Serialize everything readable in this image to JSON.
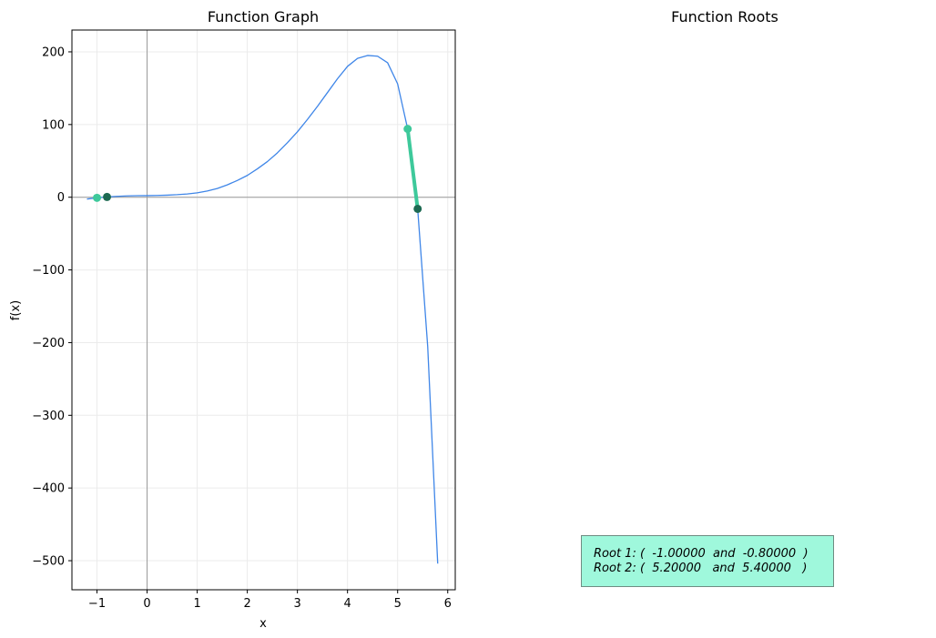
{
  "chart_data": [
    {
      "type": "line",
      "title": "Function Graph",
      "xlabel": "x",
      "ylabel": "f(x)",
      "xlim": [
        -1.5,
        6.15
      ],
      "ylim": [
        -540,
        230
      ],
      "grid": true,
      "xticks": [
        -1,
        0,
        1,
        2,
        3,
        4,
        5,
        6
      ],
      "yticks": [
        200,
        100,
        0,
        -100,
        -200,
        -300,
        -400,
        -500
      ],
      "xtick_labels": [
        "−1",
        "0",
        "1",
        "2",
        "3",
        "4",
        "5",
        "6"
      ],
      "ytick_labels": [
        "200",
        "100",
        "0",
        "−100",
        "−200",
        "−300",
        "−400",
        "−500"
      ],
      "series": [
        {
          "color": "#3f86e8",
          "x": [
            -1.2,
            -1.0,
            -0.8,
            -0.6,
            -0.4,
            -0.2,
            0.0,
            0.2,
            0.4,
            0.6,
            0.8,
            1.0,
            1.2,
            1.4,
            1.6,
            1.8,
            2.0,
            2.2,
            2.4,
            2.6,
            2.8,
            3.0,
            3.2,
            3.4,
            3.6,
            3.8,
            4.0,
            4.2,
            4.4,
            4.6,
            4.8,
            5.0,
            5.2,
            5.4,
            5.6,
            5.8
          ],
          "y": [
            -2.5,
            -0.8,
            0.4,
            1.2,
            1.8,
            2.1,
            2.2,
            2.4,
            2.8,
            3.5,
            4.5,
            6,
            8.5,
            12,
            17,
            23,
            30,
            39,
            49,
            61,
            75,
            90,
            107,
            125,
            144,
            163,
            180,
            191,
            195,
            194,
            185,
            156,
            94,
            -16,
            -205,
            -504
          ]
        }
      ],
      "highlight_segments": [
        {
          "x": [
            5.2,
            5.4
          ],
          "y": [
            94,
            -16
          ],
          "color": "#3ec99b"
        }
      ],
      "points": [
        {
          "x": -1.0,
          "y": -0.8,
          "color": "#3ec99b"
        },
        {
          "x": -0.8,
          "y": 0.4,
          "color": "#1d6a52"
        },
        {
          "x": 5.2,
          "y": 94,
          "color": "#3ec99b"
        },
        {
          "x": 5.4,
          "y": -16,
          "color": "#1d6a52"
        }
      ]
    },
    {
      "type": "table",
      "title": "Function Roots",
      "rows": [
        "Root 1: (  -1.00000  and  -0.80000  )",
        "Root 2: (  5.20000   and  5.40000   )"
      ]
    }
  ]
}
